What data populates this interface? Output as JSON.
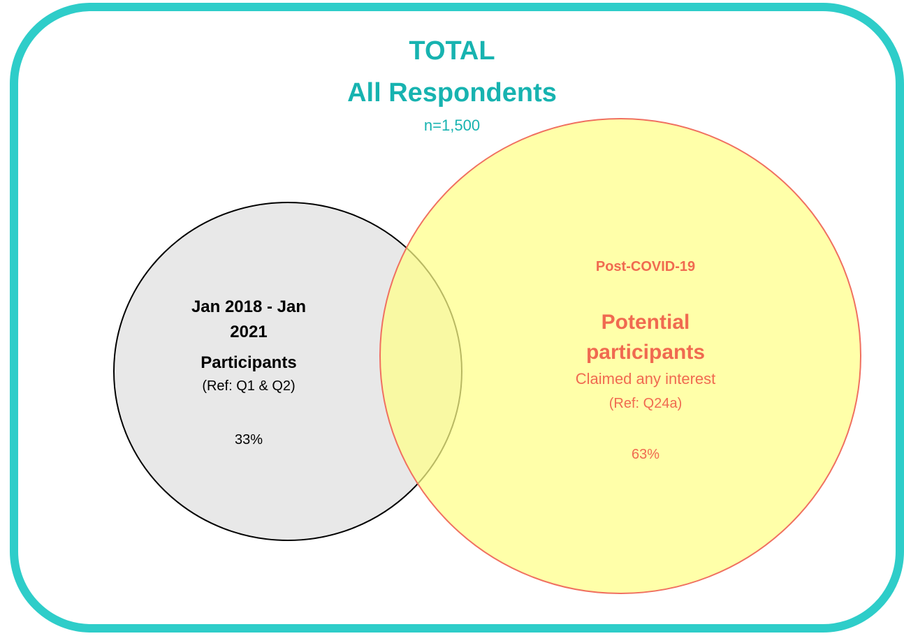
{
  "header": {
    "title": "TOTAL",
    "subtitle": "All Respondents",
    "base": "n=1,500"
  },
  "sets": [
    {
      "period": "Jan 2018 - Jan 2021",
      "label": "Participants",
      "ref": "(Ref: Q1 & Q2)",
      "share": "33%"
    },
    {
      "period": "Post-COVID-19",
      "label": "Potential participants",
      "description": "Claimed any interest",
      "ref": "(Ref: Q24a)",
      "share": "63%"
    }
  ]
}
